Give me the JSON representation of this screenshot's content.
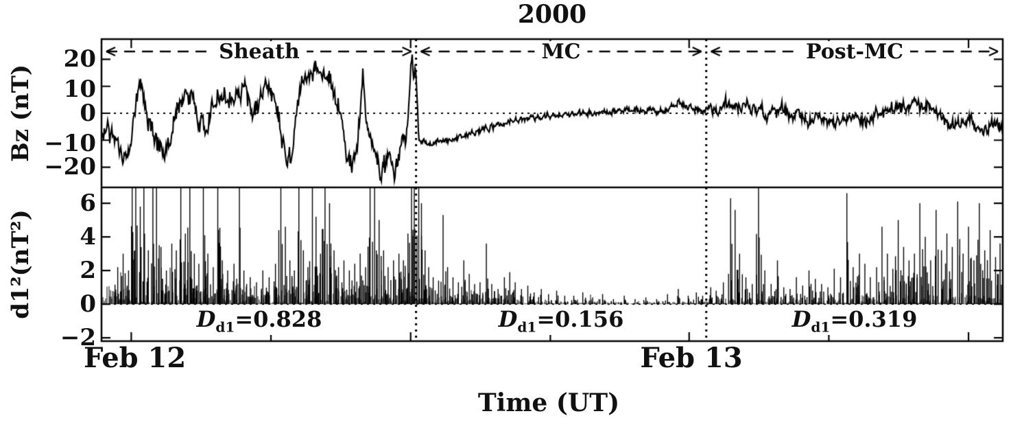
{
  "chart_data": {
    "type": "line",
    "title": "2000",
    "xlabel": "Time (UT)",
    "xticks": [
      {
        "label": "Feb 12",
        "x": 0.033
      },
      {
        "label": "Feb 13",
        "x": 0.652
      }
    ],
    "minor_xticks": [
      0.033,
      0.188,
      0.343,
      0.498,
      0.652,
      0.807,
      0.962
    ],
    "boundaries": [
      0.349,
      0.671
    ],
    "regions": [
      {
        "label": "Sheath",
        "x0": 0.0,
        "x1": 0.349,
        "metric": {
          "symbol": "D",
          "sub": "d1",
          "value": "=0.828"
        }
      },
      {
        "label": "MC",
        "x0": 0.349,
        "x1": 0.671,
        "metric": {
          "symbol": "D",
          "sub": "d1",
          "value": "=0.156"
        }
      },
      {
        "label": "Post-MC",
        "x0": 0.671,
        "x1": 1.0,
        "metric": {
          "symbol": "D",
          "sub": "d1",
          "value": "=0.319"
        }
      }
    ],
    "panels": [
      {
        "name": "bz",
        "ylabel": "Bz (nT)",
        "ylim": [
          -27.5,
          27.5
        ],
        "yticks": [
          "20",
          "10",
          "0",
          "−10",
          "−20"
        ],
        "ytick_values": [
          20,
          10,
          0,
          -10,
          -20
        ],
        "zero_line": 0,
        "series": {
          "name": "Bz",
          "control_points": [
            [
              0.0,
              -8
            ],
            [
              0.012,
              -7
            ],
            [
              0.022,
              -14
            ],
            [
              0.03,
              -16
            ],
            [
              0.04,
              8
            ],
            [
              0.045,
              12
            ],
            [
              0.052,
              -4
            ],
            [
              0.06,
              -10
            ],
            [
              0.068,
              -14
            ],
            [
              0.075,
              -13
            ],
            [
              0.085,
              2
            ],
            [
              0.092,
              7
            ],
            [
              0.1,
              9
            ],
            [
              0.108,
              -4
            ],
            [
              0.115,
              -6
            ],
            [
              0.122,
              2
            ],
            [
              0.13,
              7
            ],
            [
              0.138,
              4
            ],
            [
              0.145,
              6
            ],
            [
              0.152,
              9
            ],
            [
              0.16,
              8
            ],
            [
              0.168,
              -1
            ],
            [
              0.175,
              5
            ],
            [
              0.182,
              12
            ],
            [
              0.19,
              10
            ],
            [
              0.198,
              -4
            ],
            [
              0.205,
              -17
            ],
            [
              0.212,
              -12
            ],
            [
              0.222,
              13
            ],
            [
              0.232,
              16
            ],
            [
              0.245,
              15
            ],
            [
              0.255,
              12
            ],
            [
              0.262,
              2
            ],
            [
              0.27,
              -12
            ],
            [
              0.278,
              -20
            ],
            [
              0.284,
              -10
            ],
            [
              0.29,
              13
            ],
            [
              0.296,
              -6
            ],
            [
              0.302,
              -16
            ],
            [
              0.31,
              -21
            ],
            [
              0.318,
              -17
            ],
            [
              0.325,
              -22
            ],
            [
              0.332,
              -12
            ],
            [
              0.338,
              -6
            ],
            [
              0.344,
              16
            ],
            [
              0.3485,
              17
            ],
            [
              0.352,
              -9
            ],
            [
              0.36,
              -12
            ],
            [
              0.375,
              -10
            ],
            [
              0.395,
              -9
            ],
            [
              0.415,
              -7
            ],
            [
              0.435,
              -5
            ],
            [
              0.455,
              -3
            ],
            [
              0.475,
              -2
            ],
            [
              0.495,
              -1
            ],
            [
              0.515,
              0
            ],
            [
              0.545,
              0
            ],
            [
              0.575,
              1
            ],
            [
              0.605,
              1
            ],
            [
              0.625,
              1
            ],
            [
              0.64,
              4
            ],
            [
              0.652,
              2
            ],
            [
              0.663,
              1
            ],
            [
              0.671,
              1
            ],
            [
              0.68,
              2
            ],
            [
              0.695,
              4
            ],
            [
              0.71,
              1
            ],
            [
              0.725,
              2
            ],
            [
              0.74,
              0
            ],
            [
              0.755,
              1
            ],
            [
              0.77,
              -1
            ],
            [
              0.785,
              -3
            ],
            [
              0.8,
              -2
            ],
            [
              0.815,
              -3
            ],
            [
              0.83,
              -1
            ],
            [
              0.845,
              -4
            ],
            [
              0.86,
              0
            ],
            [
              0.875,
              2
            ],
            [
              0.89,
              3
            ],
            [
              0.905,
              4
            ],
            [
              0.92,
              2
            ],
            [
              0.935,
              -2
            ],
            [
              0.95,
              -5
            ],
            [
              0.962,
              -2
            ],
            [
              0.975,
              -6
            ],
            [
              0.988,
              -4
            ],
            [
              1.0,
              -5
            ]
          ],
          "noise_segments": [
            {
              "x0": 0.0,
              "x1": 0.349,
              "amp": 4.0
            },
            {
              "x0": 0.349,
              "x1": 0.671,
              "amp": 1.2
            },
            {
              "x0": 0.671,
              "x1": 1.0,
              "amp": 2.4
            }
          ]
        }
      },
      {
        "name": "d1sq",
        "ylabel": "d1²(nT²)",
        "ylim": [
          -2.2,
          6.94
        ],
        "yticks": [
          "6",
          "4",
          "2",
          "0",
          "−2"
        ],
        "ytick_values": [
          6,
          4,
          2,
          0,
          -2
        ],
        "zero_line": 0,
        "spikes": [
          [
            0.018,
            2.2
          ],
          [
            0.024,
            3.0
          ],
          [
            0.03,
            2.0
          ],
          [
            0.034,
            7.2
          ],
          [
            0.038,
            7.2
          ],
          [
            0.043,
            5.8
          ],
          [
            0.047,
            7.2
          ],
          [
            0.052,
            3.2
          ],
          [
            0.057,
            7.2
          ],
          [
            0.061,
            7.2
          ],
          [
            0.066,
            3.4
          ],
          [
            0.072,
            2.0
          ],
          [
            0.078,
            3.6
          ],
          [
            0.083,
            3.2
          ],
          [
            0.088,
            7.2
          ],
          [
            0.093,
            4.2
          ],
          [
            0.098,
            7.2
          ],
          [
            0.103,
            3.0
          ],
          [
            0.108,
            2.4
          ],
          [
            0.113,
            7.2
          ],
          [
            0.118,
            3.0
          ],
          [
            0.124,
            2.2
          ],
          [
            0.129,
            7.2
          ],
          [
            0.134,
            2.6
          ],
          [
            0.14,
            2.0
          ],
          [
            0.147,
            2.4
          ],
          [
            0.153,
            7.2
          ],
          [
            0.158,
            2.0
          ],
          [
            0.165,
            1.6
          ],
          [
            0.172,
            1.3
          ],
          [
            0.179,
            2.0
          ],
          [
            0.186,
            1.6
          ],
          [
            0.193,
            2.4
          ],
          [
            0.199,
            7.2
          ],
          [
            0.204,
            4.6
          ],
          [
            0.209,
            2.6
          ],
          [
            0.214,
            2.0
          ],
          [
            0.219,
            7.2
          ],
          [
            0.224,
            3.2
          ],
          [
            0.229,
            2.2
          ],
          [
            0.234,
            7.2
          ],
          [
            0.238,
            5.2
          ],
          [
            0.243,
            3.0
          ],
          [
            0.248,
            7.2
          ],
          [
            0.253,
            6.0
          ],
          [
            0.258,
            3.2
          ],
          [
            0.263,
            2.2
          ],
          [
            0.269,
            2.6
          ],
          [
            0.275,
            2.0
          ],
          [
            0.281,
            2.4
          ],
          [
            0.287,
            3.0
          ],
          [
            0.293,
            2.2
          ],
          [
            0.298,
            7.2
          ],
          [
            0.303,
            7.2
          ],
          [
            0.308,
            5.0
          ],
          [
            0.313,
            3.2
          ],
          [
            0.318,
            2.2
          ],
          [
            0.324,
            2.6
          ],
          [
            0.33,
            3.0
          ],
          [
            0.335,
            2.6
          ],
          [
            0.34,
            4.2
          ],
          [
            0.344,
            7.2
          ],
          [
            0.347,
            7.2
          ],
          [
            0.352,
            7.2
          ],
          [
            0.355,
            6.0
          ],
          [
            0.359,
            3.2
          ],
          [
            0.363,
            2.2
          ],
          [
            0.368,
            1.6
          ],
          [
            0.374,
            1.4
          ],
          [
            0.379,
            5.3
          ],
          [
            0.384,
            2.2
          ],
          [
            0.39,
            1.6
          ],
          [
            0.396,
            1.3
          ],
          [
            0.402,
            2.6
          ],
          [
            0.408,
            1.8
          ],
          [
            0.414,
            1.2
          ],
          [
            0.42,
            1.3
          ],
          [
            0.427,
            3.6
          ],
          [
            0.433,
            1.2
          ],
          [
            0.44,
            0.9
          ],
          [
            0.447,
            1.6
          ],
          [
            0.453,
            1.9
          ],
          [
            0.459,
            1.3
          ],
          [
            0.466,
            0.9
          ],
          [
            0.473,
            1.1
          ],
          [
            0.48,
            0.7
          ],
          [
            0.488,
            0.9
          ],
          [
            0.496,
            0.6
          ],
          [
            0.505,
            0.8
          ],
          [
            0.514,
            0.5
          ],
          [
            0.524,
            0.5
          ],
          [
            0.534,
            0.7
          ],
          [
            0.545,
            0.4
          ],
          [
            0.556,
            0.6
          ],
          [
            0.568,
            0.3
          ],
          [
            0.58,
            0.5
          ],
          [
            0.592,
            0.3
          ],
          [
            0.604,
            0.4
          ],
          [
            0.616,
            0.3
          ],
          [
            0.628,
            0.6
          ],
          [
            0.64,
            0.9
          ],
          [
            0.651,
            0.5
          ],
          [
            0.66,
            0.7
          ],
          [
            0.667,
            0.5
          ],
          [
            0.676,
            1.0
          ],
          [
            0.682,
            0.8
          ],
          [
            0.69,
            1.3
          ],
          [
            0.698,
            6.3
          ],
          [
            0.703,
            5.6
          ],
          [
            0.708,
            3.0
          ],
          [
            0.715,
            1.6
          ],
          [
            0.722,
            1.2
          ],
          [
            0.729,
            7.2
          ],
          [
            0.736,
            2.0
          ],
          [
            0.743,
            1.2
          ],
          [
            0.75,
            2.6
          ],
          [
            0.757,
            1.0
          ],
          [
            0.764,
            0.9
          ],
          [
            0.771,
            1.6
          ],
          [
            0.778,
            1.1
          ],
          [
            0.785,
            2.0
          ],
          [
            0.792,
            1.5
          ],
          [
            0.799,
            1.2
          ],
          [
            0.806,
            1.0
          ],
          [
            0.813,
            2.1
          ],
          [
            0.82,
            1.6
          ],
          [
            0.827,
            6.6
          ],
          [
            0.834,
            2.2
          ],
          [
            0.841,
            3.0
          ],
          [
            0.847,
            2.4
          ],
          [
            0.853,
            1.6
          ],
          [
            0.86,
            2.2
          ],
          [
            0.866,
            4.6
          ],
          [
            0.872,
            3.0
          ],
          [
            0.878,
            2.1
          ],
          [
            0.884,
            5.0
          ],
          [
            0.89,
            3.4
          ],
          [
            0.896,
            2.6
          ],
          [
            0.902,
            3.0
          ],
          [
            0.908,
            6.0
          ],
          [
            0.914,
            4.0
          ],
          [
            0.92,
            2.6
          ],
          [
            0.926,
            5.6
          ],
          [
            0.932,
            3.2
          ],
          [
            0.938,
            4.2
          ],
          [
            0.944,
            3.4
          ],
          [
            0.95,
            6.1
          ],
          [
            0.956,
            3.0
          ],
          [
            0.962,
            4.6
          ],
          [
            0.968,
            2.6
          ],
          [
            0.974,
            6.0
          ],
          [
            0.98,
            3.2
          ],
          [
            0.986,
            4.4
          ],
          [
            0.992,
            2.8
          ],
          [
            0.997,
            3.6
          ]
        ],
        "baseline_noise": [
          {
            "x0": 0.0,
            "x1": 0.35,
            "amp": 1.1
          },
          {
            "x0": 0.35,
            "x1": 0.45,
            "amp": 0.45
          },
          {
            "x0": 0.45,
            "x1": 0.56,
            "amp": 0.3
          },
          {
            "x0": 0.56,
            "x1": 0.671,
            "amp": 0.18
          },
          {
            "x0": 0.671,
            "x1": 0.84,
            "amp": 0.35
          },
          {
            "x0": 0.84,
            "x1": 1.0,
            "amp": 0.55
          }
        ]
      }
    ]
  }
}
